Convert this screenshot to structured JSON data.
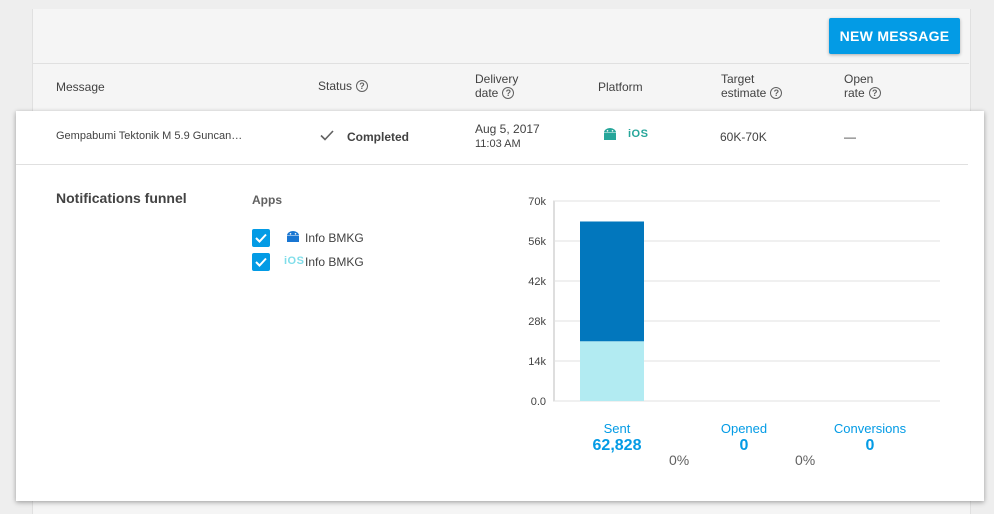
{
  "toolbar": {
    "new_message_label": "NEW MESSAGE"
  },
  "table": {
    "headers": {
      "message": "Message",
      "status": "Status",
      "delivery_1": "Delivery",
      "delivery_2": "date",
      "platform": "Platform",
      "target_1": "Target",
      "target_2": "estimate",
      "open_1": "Open",
      "open_2": "rate"
    },
    "row": {
      "message": "Gempabumi Tektonik M 5.9 Guncan…",
      "status": "Completed",
      "date": "Aug 5, 2017",
      "time": "11:03 AM",
      "platform_ios": "iOS",
      "target": "60K-70K",
      "open_rate": "—"
    }
  },
  "funnel": {
    "title": "Notifications funnel",
    "apps_title": "Apps",
    "apps": [
      {
        "platform": "android",
        "name": "Info BMKG",
        "checked": true
      },
      {
        "platform": "ios",
        "ios_label": "iOS",
        "name": "Info BMKG",
        "checked": true
      }
    ],
    "stages": [
      {
        "label": "Sent",
        "value": "62,828"
      },
      {
        "label": "Opened",
        "value": "0"
      },
      {
        "label": "Conversions",
        "value": "0"
      }
    ],
    "conversion_rates": [
      "0%",
      "0%"
    ]
  },
  "colors": {
    "accent": "#039be5",
    "android_bar": "#0277bd",
    "ios_bar": "#b2ebf2",
    "android_icon": "#1976d2",
    "platform_icon": "#26a69a",
    "ios_icon_light": "#80deea"
  },
  "chart_data": {
    "type": "bar",
    "stacked": true,
    "categories": [
      "Sent",
      "Opened",
      "Conversions"
    ],
    "series": [
      {
        "name": "iOS",
        "values": [
          20900,
          0,
          0
        ]
      },
      {
        "name": "Android",
        "values": [
          41928,
          0,
          0
        ]
      }
    ],
    "ylim": [
      0,
      70000
    ],
    "yticks": [
      "0.0",
      "14k",
      "28k",
      "42k",
      "56k",
      "70k"
    ],
    "ytick_values": [
      0,
      14000,
      28000,
      42000,
      56000,
      70000
    ],
    "grid": true
  }
}
